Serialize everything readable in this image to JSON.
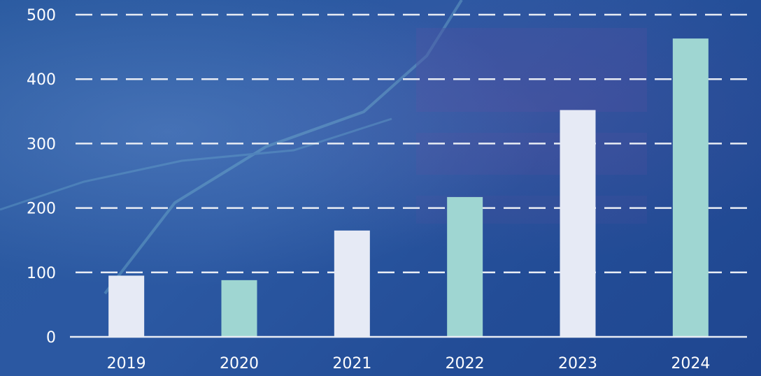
{
  "chart_data": {
    "type": "bar",
    "title": "",
    "xlabel": "",
    "ylabel": "",
    "categories": [
      "2019",
      "2020",
      "2021",
      "2022",
      "2023",
      "2024"
    ],
    "values": [
      95,
      88,
      165,
      217,
      352,
      463
    ],
    "ylim": [
      0,
      500
    ],
    "yticks": [
      "0",
      "100",
      "200",
      "300",
      "400",
      "500"
    ],
    "grid": true,
    "legend": "none",
    "bar_colors": [
      "#e6eaf5",
      "#9fd6d2",
      "#e6eaf5",
      "#9fd6d2",
      "#e6eaf5",
      "#9fd6d2"
    ]
  },
  "style": {
    "gridline_color": "#e8ecf4",
    "text_color": "#ffffff",
    "background_color": "#2a5aa0"
  }
}
